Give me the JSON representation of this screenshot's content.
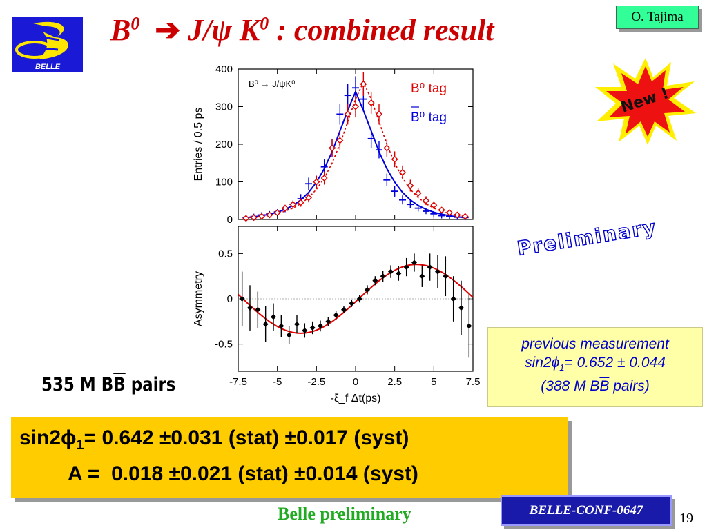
{
  "slide": {
    "title_b": "B",
    "title_sup1": "0",
    "title_arrow": "➔",
    "title_jpsi": "J/ψ K",
    "title_sup2": "0",
    "title_rest": " : combined result",
    "author": "O. Tajima",
    "logo_text": "BELLE",
    "new_badge": "New !",
    "preliminary": "Preliminary",
    "pairs_label_pre": "535 M B",
    "pairs_label_bbar": "B",
    "pairs_label_post": " pairs",
    "footer": "Belle preliminary",
    "conf": "BELLE-CONF-0647",
    "page_number": "19"
  },
  "previous": {
    "line1": "previous measurement",
    "line2_pre": "sin2",
    "line2_phi": "ϕ",
    "line2_sub": "1",
    "line2_post": "= 0.652 ± 0.044",
    "line3_pre": "(388 M B",
    "line3_bbar": "B",
    "line3_post": " pairs)"
  },
  "result": {
    "sin_label": "sin2",
    "phi": "ϕ",
    "phi_sub": "1",
    "sin_eq": "=",
    "sin_value": "0.642 ±0.031 (stat) ±0.017 (syst)",
    "a_label": "A =",
    "a_value": "0.018 ±0.021 (stat) ±0.014 (syst)"
  },
  "chart_data": [
    {
      "type": "scatter",
      "inset_label": "B⁰ → J/ψK⁰",
      "ylabel": "Entries / 0.5 ps",
      "ylim": [
        0,
        400
      ],
      "yticks": [
        "0",
        "100",
        "200",
        "300",
        "400"
      ],
      "xlim": [
        -7.5,
        7.5
      ],
      "grid": false,
      "legend_position": "top-right",
      "legend": [
        "B⁰ tag",
        "B⁰ tag"
      ],
      "x": [
        -7.0,
        -6.5,
        -6.0,
        -5.5,
        -5.0,
        -4.5,
        -4.0,
        -3.5,
        -3.0,
        -2.5,
        -2.0,
        -1.5,
        -1.0,
        -0.5,
        0.0,
        0.5,
        1.0,
        1.5,
        2.0,
        2.5,
        3.0,
        3.5,
        4.0,
        4.5,
        5.0,
        5.5,
        6.0,
        6.5,
        7.0
      ],
      "series": [
        {
          "color": "#0000dd",
          "marker": "cross",
          "values": [
            5,
            8,
            12,
            15,
            20,
            28,
            40,
            55,
            95,
            100,
            140,
            190,
            280,
            330,
            350,
            320,
            215,
            185,
            105,
            75,
            52,
            40,
            30,
            22,
            15,
            10,
            8,
            6,
            5
          ],
          "fit": [
            5,
            7,
            10,
            14,
            19,
            27,
            37,
            52,
            72,
            99,
            135,
            180,
            235,
            290,
            340,
            290,
            235,
            180,
            135,
            99,
            72,
            52,
            37,
            27,
            19,
            14,
            10,
            7,
            5
          ]
        },
        {
          "color": "#dd0000",
          "marker": "diamond",
          "values": [
            3,
            5,
            8,
            12,
            18,
            30,
            40,
            45,
            58,
            100,
            110,
            190,
            210,
            280,
            300,
            360,
            310,
            280,
            190,
            160,
            125,
            90,
            70,
            50,
            38,
            25,
            18,
            12,
            8
          ],
          "fit": [
            4,
            6,
            8,
            11,
            16,
            22,
            30,
            42,
            58,
            80,
            110,
            150,
            200,
            260,
            320,
            365,
            320,
            260,
            200,
            150,
            110,
            80,
            58,
            42,
            30,
            22,
            16,
            11,
            8
          ]
        }
      ]
    },
    {
      "type": "scatter",
      "ylabel": "Asymmetry",
      "xlabel": "-ξ_f Δt(ps)",
      "ylim": [
        -0.8,
        0.8
      ],
      "yticks": [
        "-0.5",
        "0",
        "0.5"
      ],
      "xlim": [
        -7.5,
        7.5
      ],
      "xticks": [
        "-7.5",
        "-5",
        "-2.5",
        "0",
        "2.5",
        "5",
        "7.5"
      ],
      "grid": false,
      "x": [
        -7.25,
        -6.75,
        -6.25,
        -5.75,
        -5.25,
        -4.75,
        -4.25,
        -3.75,
        -3.25,
        -2.75,
        -2.25,
        -1.75,
        -1.25,
        -0.75,
        -0.25,
        0.25,
        0.75,
        1.25,
        1.75,
        2.25,
        2.75,
        3.25,
        3.75,
        4.25,
        4.75,
        5.25,
        5.75,
        6.25,
        6.75,
        7.25
      ],
      "values": [
        0.0,
        -0.1,
        -0.12,
        -0.28,
        -0.2,
        -0.3,
        -0.4,
        -0.28,
        -0.35,
        -0.32,
        -0.3,
        -0.25,
        -0.18,
        -0.12,
        -0.05,
        0.0,
        0.1,
        0.2,
        0.25,
        0.3,
        0.28,
        0.35,
        0.4,
        0.25,
        0.35,
        0.3,
        0.25,
        0.0,
        -0.1,
        -0.3
      ],
      "errors": [
        0.3,
        0.25,
        0.2,
        0.2,
        0.15,
        0.12,
        0.1,
        0.1,
        0.08,
        0.07,
        0.06,
        0.05,
        0.05,
        0.04,
        0.04,
        0.04,
        0.05,
        0.05,
        0.06,
        0.07,
        0.08,
        0.1,
        0.1,
        0.12,
        0.15,
        0.18,
        0.22,
        0.25,
        0.3,
        0.35
      ],
      "fit_color": "#dd0000"
    }
  ]
}
